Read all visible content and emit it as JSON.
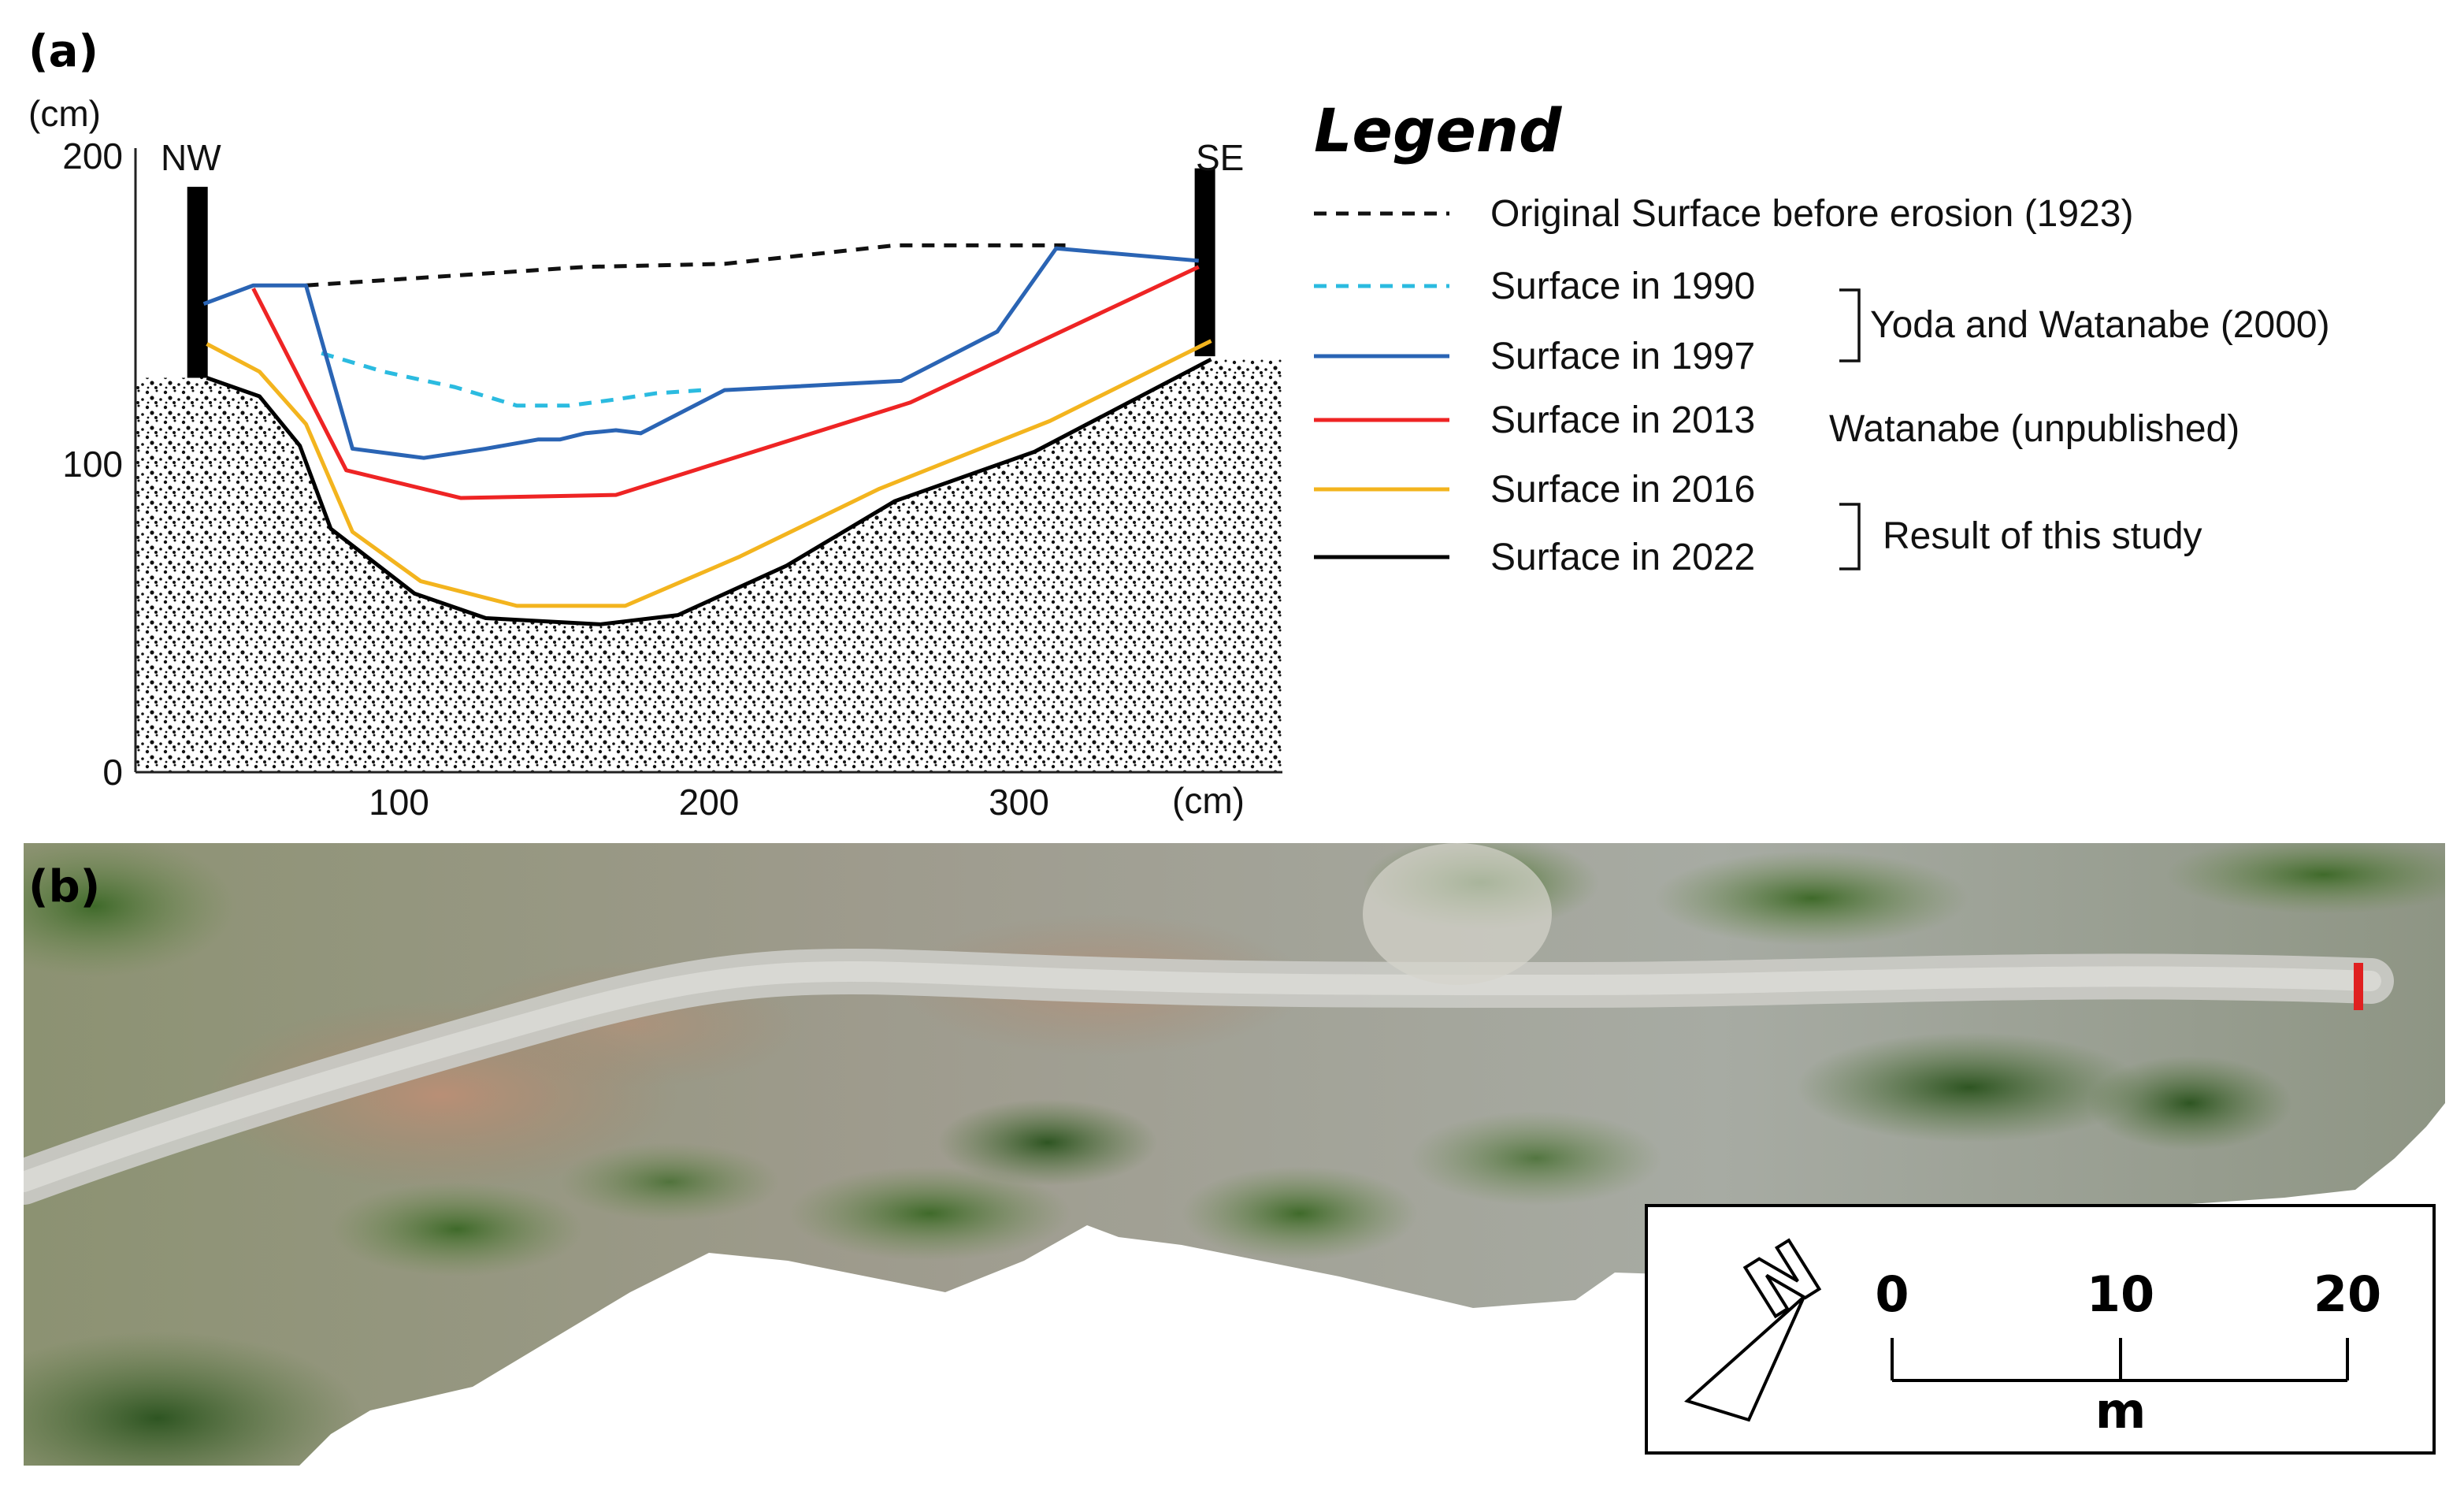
{
  "panels": {
    "a_label": "(a)",
    "b_label": "(b)"
  },
  "chart_data": {
    "type": "line",
    "y_unit": "(cm)",
    "x_unit": "(cm)",
    "xlim": [
      15,
      385
    ],
    "ylim": [
      0,
      200
    ],
    "x_ticks": [
      100,
      200,
      300
    ],
    "y_ticks": [
      0,
      100,
      200
    ],
    "side_labels": {
      "left": "NW",
      "right": "SE"
    },
    "stakes": [
      {
        "x": 35,
        "top": 190,
        "bottom": 128
      },
      {
        "x": 360,
        "top": 196,
        "bottom": 135
      }
    ],
    "ground": {
      "fill": "stippled",
      "series_ref": "Surface in 2022"
    },
    "series": [
      {
        "name": "Original Surface before erosion (1923)",
        "color": "#111111",
        "dash": "dash",
        "points": [
          [
            70,
            158
          ],
          [
            160,
            164
          ],
          [
            205,
            165
          ],
          [
            260,
            171
          ],
          [
            315,
            171
          ]
        ]
      },
      {
        "name": "Surface in 1990",
        "color": "#2bbbe0",
        "dash": "dash",
        "points": [
          [
            75,
            136
          ],
          [
            95,
            130
          ],
          [
            118,
            125
          ],
          [
            138,
            119
          ],
          [
            155,
            119
          ],
          [
            170,
            121
          ],
          [
            183,
            123
          ],
          [
            198,
            124
          ]
        ]
      },
      {
        "name": "Surface in 1997",
        "color": "#2a64b4",
        "dash": "solid",
        "points": [
          [
            37,
            152
          ],
          [
            53,
            158
          ],
          [
            70,
            158
          ],
          [
            85,
            105
          ],
          [
            108,
            102
          ],
          [
            128,
            105
          ],
          [
            145,
            108
          ],
          [
            152,
            108
          ],
          [
            160,
            110
          ],
          [
            170,
            111
          ],
          [
            178,
            110
          ],
          [
            205,
            124
          ],
          [
            262,
            127
          ],
          [
            293,
            143
          ],
          [
            312,
            170
          ],
          [
            358,
            166
          ]
        ]
      },
      {
        "name": "Surface in 2013",
        "color": "#ee2424",
        "dash": "solid",
        "points": [
          [
            53,
            157
          ],
          [
            83,
            98
          ],
          [
            120,
            89
          ],
          [
            170,
            90
          ],
          [
            265,
            120
          ],
          [
            358,
            164
          ]
        ]
      },
      {
        "name": "Surface in 2016",
        "color": "#f3b41e",
        "dash": "solid",
        "points": [
          [
            38,
            139
          ],
          [
            55,
            130
          ],
          [
            70,
            113
          ],
          [
            85,
            78
          ],
          [
            107,
            62
          ],
          [
            138,
            54
          ],
          [
            173,
            54
          ],
          [
            210,
            70
          ],
          [
            255,
            92
          ],
          [
            310,
            114
          ],
          [
            362,
            140
          ]
        ]
      },
      {
        "name": "Surface in 2022",
        "color": "#000000",
        "dash": "solid",
        "points": [
          [
            38,
            128
          ],
          [
            55,
            122
          ],
          [
            68,
            106
          ],
          [
            78,
            79
          ],
          [
            105,
            58
          ],
          [
            128,
            50
          ],
          [
            165,
            48
          ],
          [
            190,
            51
          ],
          [
            225,
            67
          ],
          [
            260,
            88
          ],
          [
            305,
            104
          ],
          [
            362,
            134
          ]
        ]
      }
    ]
  },
  "legend": {
    "title": "Legend",
    "groups": {
      "yoda": "Yoda and Watanabe (2000)",
      "watanabe": "Watanabe (unpublished)",
      "study": "Result of this study"
    },
    "items": [
      {
        "label": "Original Surface before erosion (1923)",
        "color": "#111111",
        "dash": "dash"
      },
      {
        "label": "Surface in 1990",
        "color": "#2bbbe0",
        "dash": "dash"
      },
      {
        "label": "Surface in 1997",
        "color": "#2a64b4",
        "dash": "solid"
      },
      {
        "label": "Surface in 2013",
        "color": "#ee2424",
        "dash": "solid"
      },
      {
        "label": "Surface in 2016",
        "color": "#f3b41e",
        "dash": "solid"
      },
      {
        "label": "Surface in 2022",
        "color": "#000000",
        "dash": "solid"
      }
    ]
  },
  "scale_bar": {
    "labels": [
      "0",
      "10",
      "20"
    ],
    "unit": "m",
    "north": "N"
  },
  "map_marker_color": "#e02020"
}
